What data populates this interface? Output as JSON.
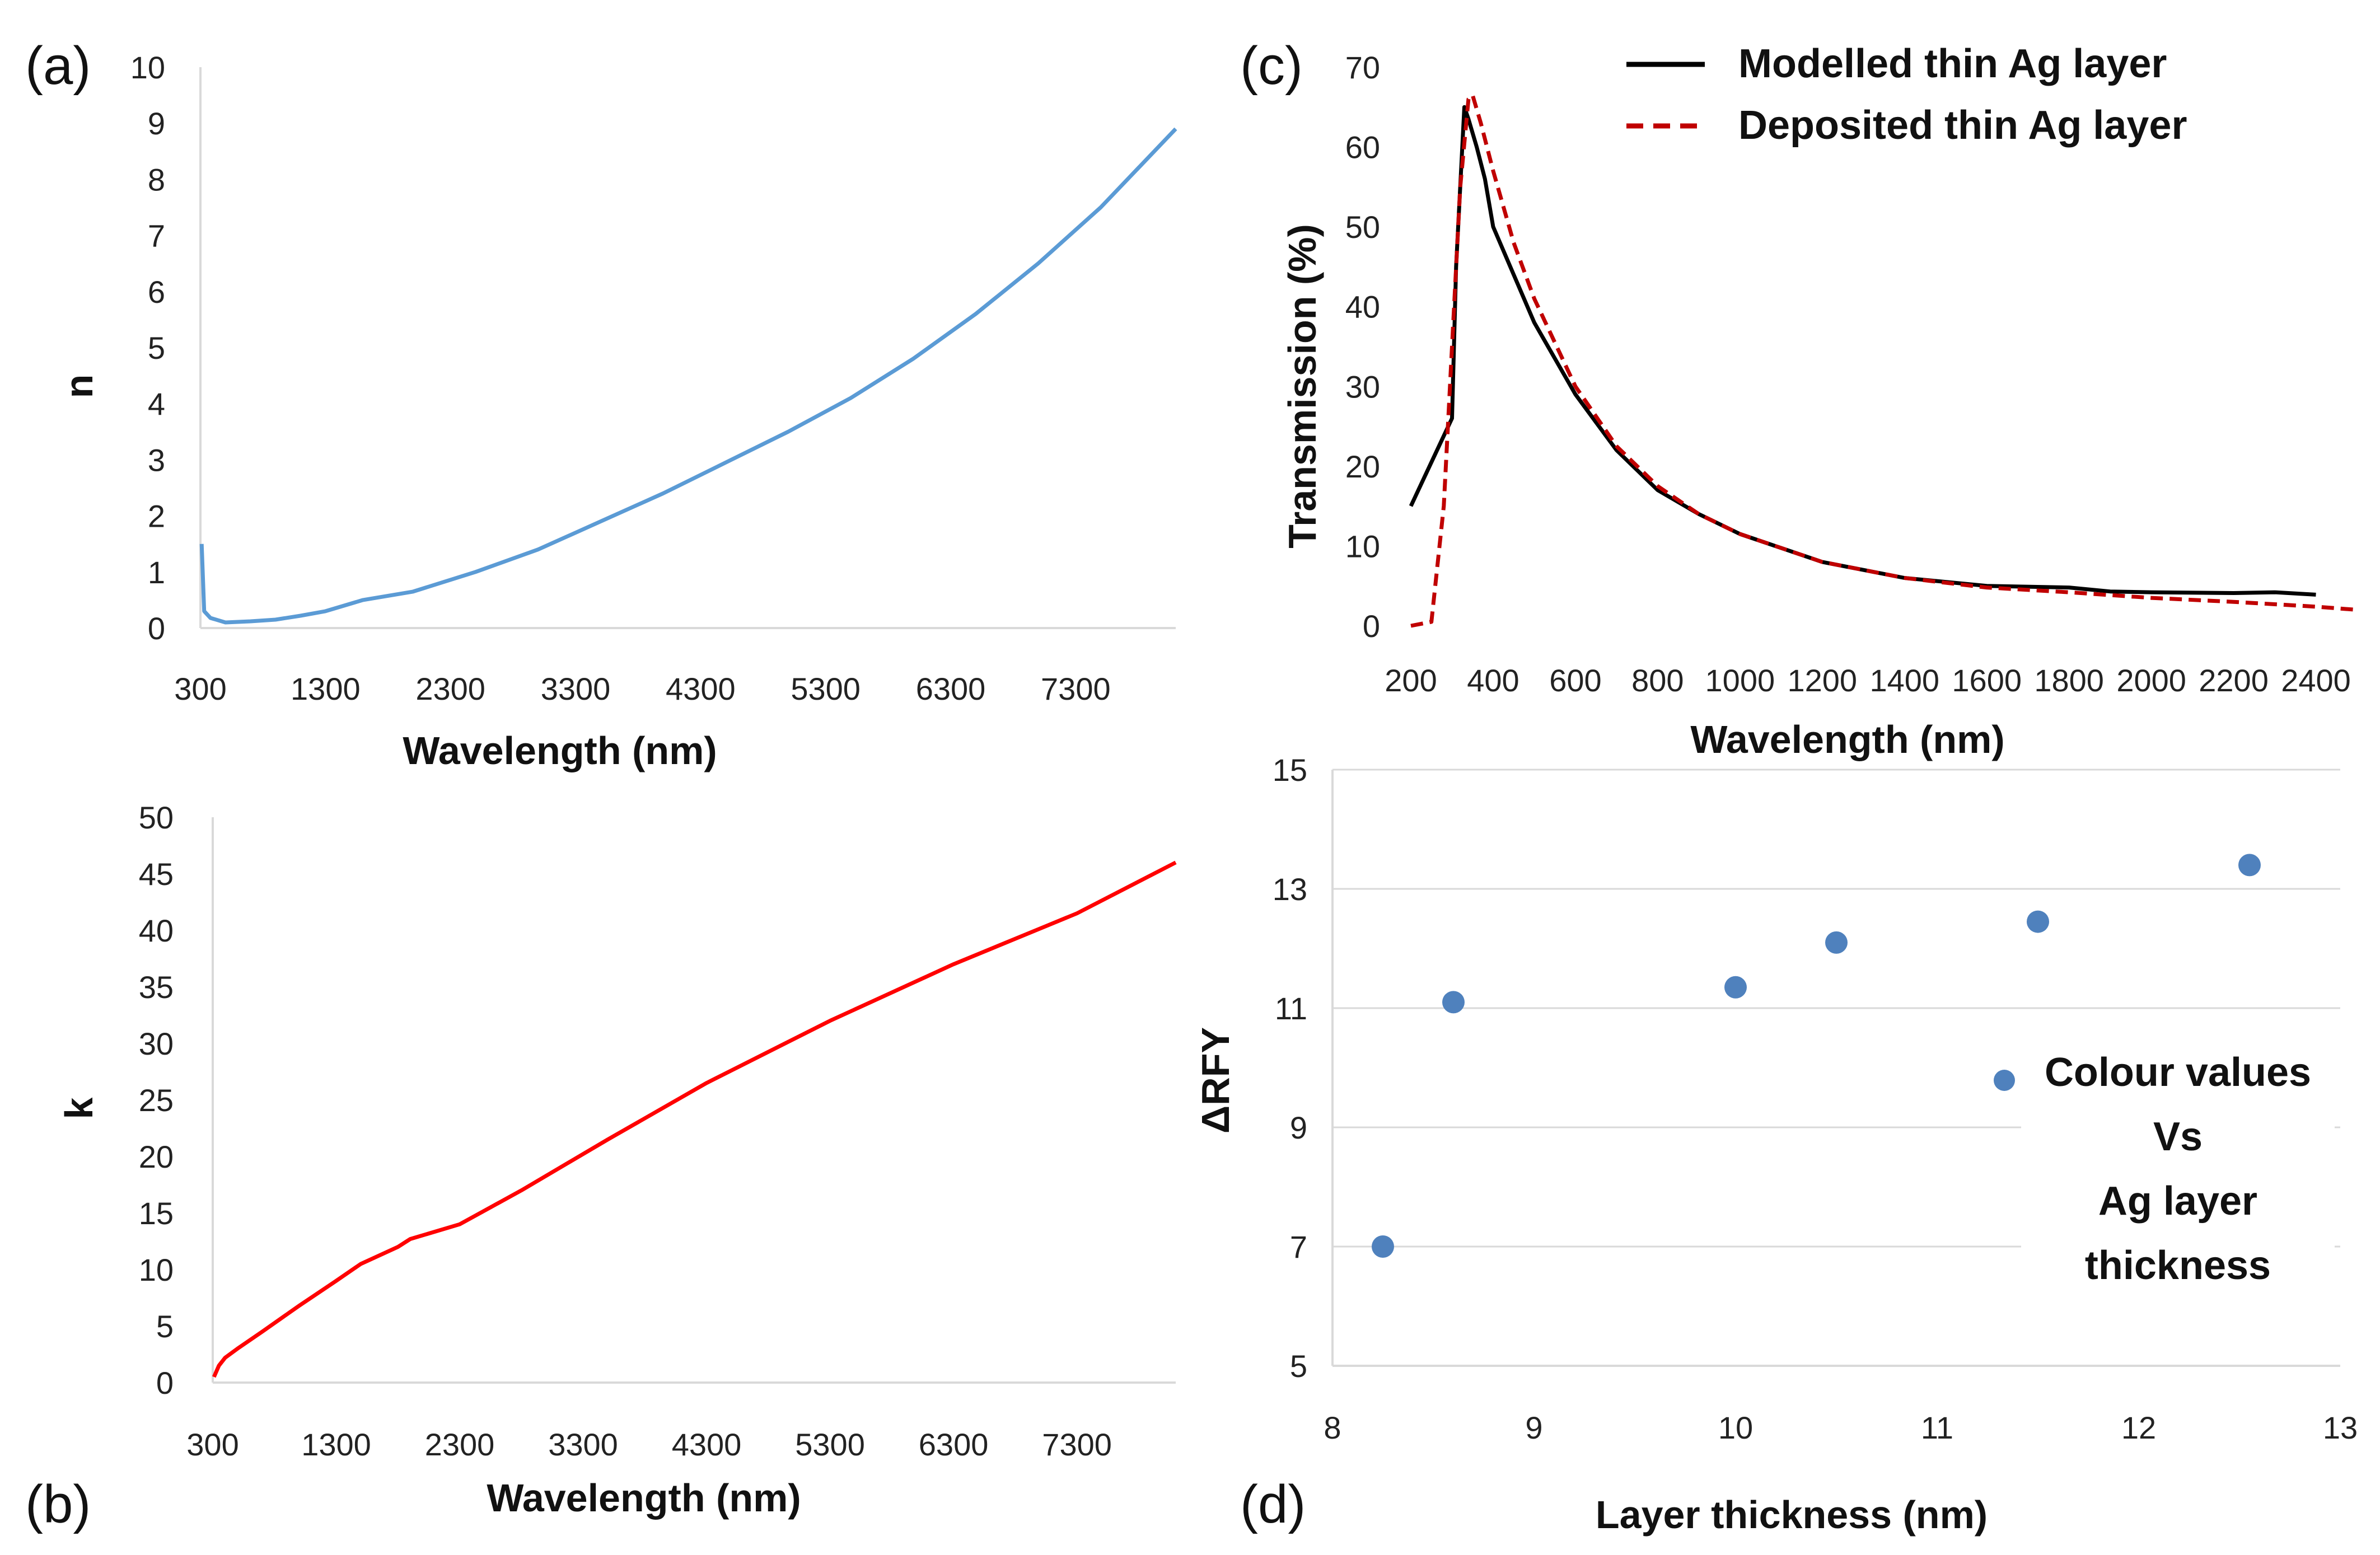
{
  "panels": {
    "a": {
      "label": "(a)"
    },
    "b": {
      "label": "(b)"
    },
    "c": {
      "label": "(c)"
    },
    "d": {
      "label": "(d)"
    }
  },
  "chart_data": [
    {
      "id": "a",
      "type": "line",
      "title": "",
      "xlabel": "Wavelength (nm)",
      "ylabel": "n",
      "xlim": [
        300,
        8100
      ],
      "ylim": [
        0,
        10
      ],
      "xticks": [
        "300",
        "1300",
        "2300",
        "3300",
        "4300",
        "5300",
        "6300",
        "7300"
      ],
      "yticks": [
        "0",
        "1",
        "2",
        "3",
        "4",
        "5",
        "6",
        "7",
        "8",
        "9",
        "10"
      ],
      "grid": false,
      "series": [
        {
          "name": "n",
          "color": "#5b9bd5",
          "x": [
            310,
            330,
            380,
            500,
            700,
            900,
            1100,
            1300,
            1600,
            2000,
            2500,
            3000,
            3500,
            4000,
            4500,
            5000,
            5500,
            6000,
            6500,
            7000,
            7500,
            8100
          ],
          "y": [
            1.5,
            0.3,
            0.18,
            0.1,
            0.12,
            0.15,
            0.22,
            0.3,
            0.5,
            0.65,
            1.0,
            1.4,
            1.9,
            2.4,
            2.95,
            3.5,
            4.1,
            4.8,
            5.6,
            6.5,
            7.5,
            8.9
          ]
        }
      ]
    },
    {
      "id": "b",
      "type": "line",
      "title": "",
      "xlabel": "Wavelength (nm)",
      "ylabel": "k",
      "xlim": [
        300,
        8100
      ],
      "ylim": [
        0,
        50
      ],
      "xticks": [
        "300",
        "1300",
        "2300",
        "3300",
        "4300",
        "5300",
        "6300",
        "7300"
      ],
      "yticks": [
        "0",
        "5",
        "10",
        "15",
        "20",
        "25",
        "30",
        "35",
        "40",
        "45",
        "50"
      ],
      "grid": false,
      "series": [
        {
          "name": "k",
          "color": "#ff0000",
          "x": [
            310,
            350,
            400,
            500,
            700,
            1000,
            1300,
            1500,
            1800,
            1900,
            2300,
            2800,
            3500,
            4300,
            5300,
            6300,
            7300,
            8100
          ],
          "y": [
            0.5,
            1.5,
            2.2,
            3.0,
            4.5,
            6.8,
            9.0,
            10.5,
            12.0,
            12.7,
            14.0,
            17.0,
            21.5,
            26.5,
            32.0,
            37.0,
            41.5,
            46.0
          ]
        }
      ]
    },
    {
      "id": "c",
      "type": "line",
      "title": "",
      "xlabel": "Wavelength (nm)",
      "ylabel": "Transmission (%)",
      "xlim": [
        200,
        2500
      ],
      "ylim": [
        0,
        70
      ],
      "xticks": [
        "200",
        "400",
        "600",
        "800",
        "1000",
        "1200",
        "1400",
        "1600",
        "1800",
        "2000",
        "2200",
        "2400"
      ],
      "yticks": [
        "0",
        "10",
        "20",
        "30",
        "40",
        "50",
        "60",
        "70"
      ],
      "grid": false,
      "legend": "top-right",
      "series": [
        {
          "name": "Modelled thin Ag layer",
          "color": "#000000",
          "style": "solid",
          "x": [
            200,
            300,
            310,
            330,
            340,
            360,
            380,
            400,
            450,
            500,
            600,
            700,
            800,
            900,
            1000,
            1200,
            1400,
            1600,
            1800,
            1900,
            2000,
            2200,
            2300,
            2400
          ],
          "y": [
            15,
            26,
            45,
            65,
            63.5,
            60,
            56,
            50,
            44,
            38,
            29,
            22,
            17,
            14,
            11.5,
            8,
            6,
            5,
            4.8,
            4.3,
            4.2,
            4.1,
            4.2,
            3.9
          ]
        },
        {
          "name": "Deposited thin Ag layer",
          "color": "#c00000",
          "style": "dashed",
          "x": [
            200,
            250,
            280,
            300,
            320,
            340,
            350,
            370,
            400,
            450,
            500,
            600,
            700,
            800,
            900,
            1000,
            1200,
            1400,
            1600,
            1800,
            2000,
            2200,
            2400,
            2500
          ],
          "y": [
            0,
            0.5,
            15,
            35,
            55,
            66,
            66.5,
            63,
            57,
            48,
            41,
            30,
            22.5,
            17.5,
            14,
            11.5,
            8,
            6,
            4.8,
            4.2,
            3.5,
            3,
            2.4,
            2
          ]
        }
      ]
    },
    {
      "id": "d",
      "type": "scatter",
      "title": "",
      "xlabel": "Layer thickness (nm)",
      "ylabel": "ΔRFY",
      "xlim": [
        8,
        13
      ],
      "ylim": [
        5,
        15
      ],
      "xticks": [
        "8",
        "9",
        "10",
        "11",
        "12",
        "13"
      ],
      "yticks": [
        "5",
        "7",
        "9",
        "11",
        "13",
        "15"
      ],
      "grid": true,
      "legend": "right",
      "legend_lines": [
        "Colour values",
        "Vs",
        "Ag layer",
        "thickness"
      ],
      "series": [
        {
          "name": "Colour values Vs Ag layer thickness",
          "color": "#4f81bd",
          "x": [
            8.25,
            8.6,
            10,
            10.5,
            11.5,
            12.55
          ],
          "y": [
            7.0,
            11.1,
            11.35,
            12.1,
            12.45,
            13.4
          ]
        }
      ]
    }
  ]
}
